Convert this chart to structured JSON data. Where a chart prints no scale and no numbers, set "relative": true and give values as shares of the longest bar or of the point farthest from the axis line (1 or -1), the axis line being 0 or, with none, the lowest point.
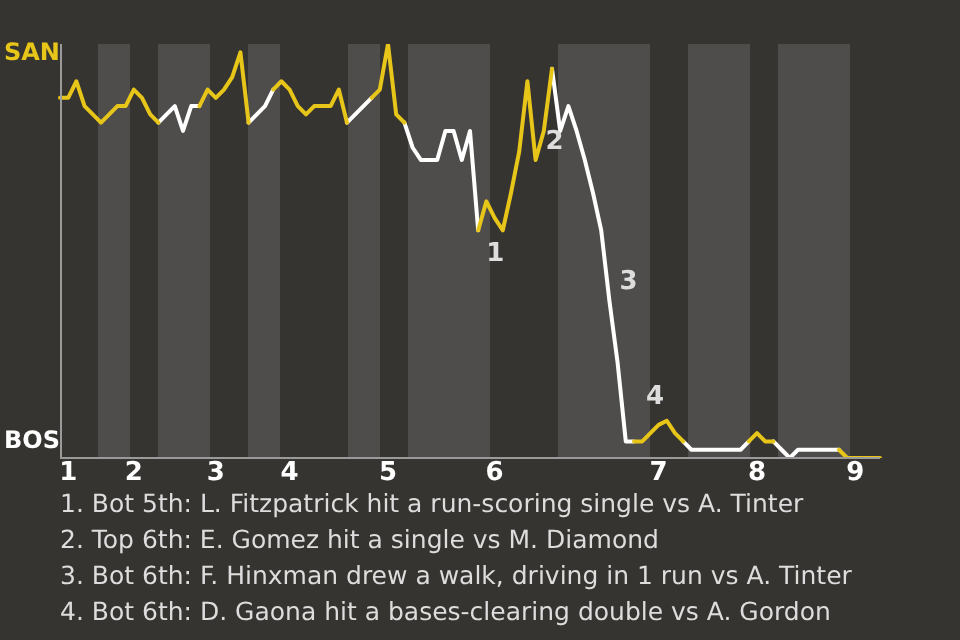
{
  "chart_data": {
    "type": "line",
    "relative": true,
    "categories": [
      null,
      "1",
      null,
      null,
      null,
      null,
      null,
      null,
      null,
      "2",
      null,
      null,
      null,
      null,
      null,
      null,
      null,
      null,
      null,
      "3",
      null,
      null,
      null,
      null,
      null,
      null,
      null,
      null,
      "4",
      null,
      null,
      null,
      null,
      null,
      null,
      null,
      null,
      null,
      null,
      null,
      "5",
      null,
      null,
      null,
      null,
      null,
      null,
      null,
      null,
      null,
      null,
      null,
      null,
      "6",
      null,
      null,
      null,
      null,
      null,
      null,
      null,
      null,
      null,
      null,
      null,
      null,
      null,
      null,
      null,
      null,
      null,
      null,
      null,
      "7",
      null,
      null,
      null,
      null,
      null,
      null,
      null,
      null,
      null,
      null,
      null,
      "8",
      null,
      null,
      null,
      null,
      null,
      null,
      null,
      null,
      null,
      null,
      null,
      "9",
      null,
      null,
      null
    ],
    "marker": "none",
    "line_style": "solid",
    "series": [
      {
        "color": "#e8c619",
        "values": [
          0.87,
          0.87,
          0.91,
          0.85,
          0.83,
          0.81,
          0.83,
          0.85,
          0.85,
          0.89,
          0.87,
          0.83,
          0.81,
          null,
          null,
          null,
          null,
          0.85,
          0.89,
          0.87,
          0.89,
          0.92,
          0.98,
          0.81,
          null,
          null,
          0.89,
          0.91,
          0.89,
          0.85,
          0.83,
          0.85,
          0.85,
          0.85,
          0.89,
          0.81,
          null,
          null,
          0.87,
          0.89,
          1,
          0.83,
          0.81,
          null,
          null,
          null,
          null,
          null,
          null,
          null,
          null,
          0.55,
          0.62,
          0.58,
          0.55,
          0.64,
          0.74,
          0.91,
          0.72,
          0.79,
          0.94,
          null,
          null,
          null,
          null,
          null,
          null,
          null,
          null,
          null,
          0.04,
          0.04,
          0.06,
          0.08,
          0.09,
          0.06,
          0.04,
          null,
          null,
          null,
          null,
          null,
          null,
          null,
          0.04,
          0.06,
          0.04,
          0.04,
          null,
          null,
          null,
          null,
          null,
          null,
          null,
          0.02,
          0,
          0,
          0,
          0,
          0
        ]
      },
      {
        "color": "#ffffff",
        "values": [
          null,
          null,
          null,
          null,
          null,
          null,
          null,
          null,
          null,
          null,
          null,
          null,
          0.81,
          0.83,
          0.85,
          0.79,
          0.85,
          0.85,
          null,
          null,
          null,
          null,
          null,
          0.81,
          0.83,
          0.85,
          0.89,
          null,
          null,
          null,
          null,
          null,
          null,
          null,
          null,
          0.81,
          0.83,
          0.85,
          0.87,
          null,
          null,
          null,
          0.81,
          0.75,
          0.72,
          0.72,
          0.72,
          0.79,
          0.79,
          0.72,
          0.79,
          0.55,
          null,
          null,
          null,
          null,
          null,
          null,
          null,
          null,
          0.94,
          0.79,
          0.85,
          0.79,
          0.72,
          0.64,
          0.55,
          0.38,
          0.23,
          0.04,
          0.04,
          null,
          null,
          null,
          null,
          null,
          0.04,
          0.02,
          0.02,
          0.02,
          0.02,
          0.02,
          0.02,
          0.02,
          0.04,
          null,
          null,
          0.04,
          0.02,
          0,
          0.02,
          0.02,
          0.02,
          0.02,
          0.02,
          0.02,
          null,
          null,
          null,
          null,
          null
        ]
      }
    ],
    "annotations": [
      "1",
      "2",
      "3",
      "4",
      "SAN",
      "BOS",
      "1. Bot 5th: L. Fitzpatrick hit a run-scoring single vs A. Tinter",
      "2. Top 6th: E. Gomez hit a single vs M. Diamond",
      "3. Bot 6th: F. Hinxman drew a walk, driving in 1 run vs A. Tinter",
      "4. Bot 6th: D. Gaona hit a bases-clearing double vs A. Gordon"
    ]
  }
}
